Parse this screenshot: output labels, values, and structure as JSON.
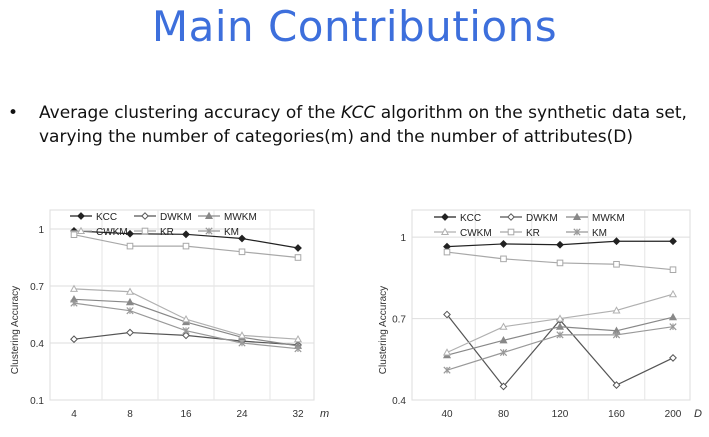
{
  "slide": {
    "title": "Main Contributions",
    "bullet_symbol": "•",
    "bullet_pre": "Average clustering accuracy of the ",
    "bullet_em": "KCC",
    "bullet_post": " algorithm on the synthetic data set, varying the number of categories(m) and the number of attributes(D)"
  },
  "chart_data": [
    {
      "type": "line",
      "xlabel": "m",
      "ylabel": "Clustering Accuracy",
      "categories": [
        "4",
        "8",
        "16",
        "24",
        "32"
      ],
      "ylim": [
        0.1,
        1.1
      ],
      "yticks": [
        "0.1",
        "0.4",
        "0.7",
        "1"
      ],
      "legend_position": "top-left",
      "series": [
        {
          "name": "KCC",
          "marker": "diamond-filled",
          "color": "#222222",
          "values": [
            0.99,
            0.975,
            0.972,
            0.95,
            0.9
          ]
        },
        {
          "name": "DWKM",
          "marker": "diamond-open",
          "color": "#555555",
          "values": [
            0.42,
            0.455,
            0.44,
            0.41,
            0.39
          ]
        },
        {
          "name": "MWKM",
          "marker": "triangle-filled",
          "color": "#888888",
          "values": [
            0.63,
            0.615,
            0.51,
            0.43,
            0.385
          ]
        },
        {
          "name": "CWKM",
          "marker": "triangle-open",
          "color": "#b0b0b0",
          "values": [
            0.685,
            0.67,
            0.525,
            0.44,
            0.42
          ]
        },
        {
          "name": "KR",
          "marker": "square-open",
          "color": "#a8a8a8",
          "values": [
            0.97,
            0.91,
            0.91,
            0.88,
            0.85
          ]
        },
        {
          "name": "KM",
          "marker": "star",
          "color": "#999999",
          "values": [
            0.61,
            0.57,
            0.465,
            0.4,
            0.37
          ]
        }
      ]
    },
    {
      "type": "line",
      "xlabel": "D",
      "ylabel": "Clustering Accuracy",
      "categories": [
        "40",
        "80",
        "120",
        "160",
        "200"
      ],
      "ylim": [
        0.4,
        1.1
      ],
      "yticks": [
        "0.4",
        "0.7",
        "1"
      ],
      "legend_position": "top-left",
      "series": [
        {
          "name": "KCC",
          "marker": "diamond-filled",
          "color": "#222222",
          "values": [
            0.965,
            0.975,
            0.972,
            0.985,
            0.985
          ]
        },
        {
          "name": "DWKM",
          "marker": "diamond-open",
          "color": "#555555",
          "values": [
            0.715,
            0.45,
            0.695,
            0.455,
            0.555
          ]
        },
        {
          "name": "MWKM",
          "marker": "triangle-filled",
          "color": "#888888",
          "values": [
            0.565,
            0.62,
            0.67,
            0.655,
            0.705
          ]
        },
        {
          "name": "CWKM",
          "marker": "triangle-open",
          "color": "#b0b0b0",
          "values": [
            0.575,
            0.67,
            0.7,
            0.73,
            0.79
          ]
        },
        {
          "name": "KR",
          "marker": "square-open",
          "color": "#a8a8a8",
          "values": [
            0.945,
            0.92,
            0.905,
            0.9,
            0.88
          ]
        },
        {
          "name": "KM",
          "marker": "star",
          "color": "#999999",
          "values": [
            0.51,
            0.575,
            0.64,
            0.64,
            0.67
          ]
        }
      ]
    }
  ]
}
